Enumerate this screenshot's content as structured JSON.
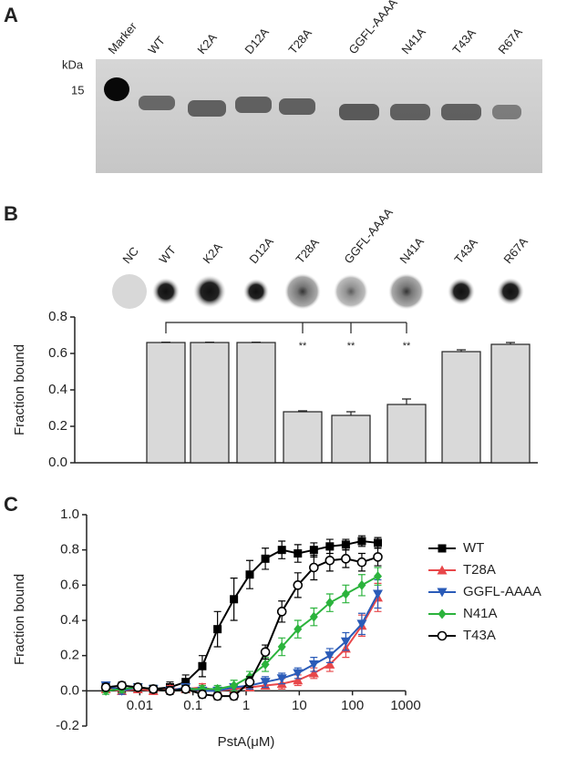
{
  "panel_labels": [
    "A",
    "B",
    "C"
  ],
  "gel": {
    "lanes": [
      "Marker",
      "WT",
      "K2A",
      "D12A",
      "T28A",
      "GGFL-AAAA",
      "N41A",
      "T43A",
      "R67A"
    ],
    "unit": "kDa",
    "marker_size": "15"
  },
  "chart_data": [
    {
      "type": "bar",
      "y_label": "Fraction bound",
      "categories": [
        "NC",
        "WT",
        "K2A",
        "D12A",
        "T28A",
        "GGFL-AAAA",
        "N41A",
        "T43A",
        "R67A"
      ],
      "values": [
        null,
        0.66,
        0.66,
        0.66,
        0.28,
        0.26,
        0.32,
        0.61,
        0.65
      ],
      "errors": [
        null,
        0.002,
        0.002,
        0.002,
        0.005,
        0.02,
        0.03,
        0.01,
        0.01
      ],
      "significance_labels": [
        null,
        null,
        null,
        null,
        "**",
        "**",
        "**",
        null,
        null
      ],
      "color": "#d9d9d9",
      "ylim": [
        0,
        0.8
      ],
      "yticks": [
        {
          "value": 0,
          "label": "0.0"
        },
        0.2,
        0.4,
        0.6,
        0.8
      ]
    },
    {
      "type": "line",
      "x_label": "PstA(μM)",
      "y_label": "Fraction bound",
      "xscale": "log",
      "x": [
        0.0023,
        0.0046,
        0.0092,
        0.018,
        0.037,
        0.073,
        0.15,
        0.29,
        0.59,
        1.17,
        2.3,
        4.7,
        9.4,
        18.8,
        37.5,
        75,
        150,
        300
      ],
      "series": [
        {
          "name": "WT",
          "color": "#000000",
          "marker": "square",
          "values": [
            0.02,
            0.01,
            0.01,
            0.01,
            0.02,
            0.05,
            0.14,
            0.35,
            0.52,
            0.66,
            0.75,
            0.8,
            0.78,
            0.8,
            0.82,
            0.83,
            0.85,
            0.84
          ],
          "errors": [
            0.02,
            0.02,
            0.02,
            0.02,
            0.03,
            0.04,
            0.06,
            0.1,
            0.12,
            0.08,
            0.06,
            0.05,
            0.05,
            0.04,
            0.04,
            0.03,
            0.03,
            0.03
          ]
        },
        {
          "name": "T28A",
          "color": "#e8474a",
          "marker": "triangle-up",
          "values": [
            0.01,
            0,
            0.01,
            0,
            0.01,
            0.01,
            0.02,
            0,
            0.01,
            0.02,
            0.03,
            0.04,
            0.06,
            0.1,
            0.15,
            0.24,
            0.37,
            0.53
          ],
          "errors": [
            0.02,
            0.02,
            0.02,
            0.02,
            0.02,
            0.02,
            0.02,
            0.02,
            0.02,
            0.02,
            0.02,
            0.03,
            0.03,
            0.03,
            0.04,
            0.05,
            0.06,
            0.08
          ]
        },
        {
          "name": "GGFL-AAAA",
          "color": "#2a5bb8",
          "marker": "triangle-down",
          "values": [
            0.03,
            0,
            0.02,
            0.01,
            0,
            0.02,
            0,
            0,
            0.02,
            0.03,
            0.05,
            0.07,
            0.1,
            0.15,
            0.2,
            0.28,
            0.38,
            0.55
          ],
          "errors": [
            0.02,
            0.02,
            0.02,
            0.02,
            0.02,
            0.02,
            0.02,
            0.02,
            0.02,
            0.02,
            0.03,
            0.03,
            0.03,
            0.04,
            0.04,
            0.05,
            0.06,
            0.08
          ]
        },
        {
          "name": "N41A",
          "color": "#2bb33c",
          "marker": "diamond",
          "values": [
            0,
            0.01,
            0.02,
            0.01,
            0,
            0.01,
            0.01,
            0.01,
            0.03,
            0.08,
            0.15,
            0.25,
            0.35,
            0.42,
            0.5,
            0.55,
            0.6,
            0.65
          ],
          "errors": [
            0.02,
            0.02,
            0.02,
            0.02,
            0.02,
            0.02,
            0.02,
            0.02,
            0.03,
            0.03,
            0.04,
            0.05,
            0.05,
            0.05,
            0.05,
            0.05,
            0.06,
            0.05
          ]
        },
        {
          "name": "T43A",
          "color": "#000000",
          "marker": "circle-open",
          "values": [
            0.02,
            0.03,
            0.02,
            0.01,
            0,
            0.01,
            -0.02,
            -0.03,
            -0.03,
            0.05,
            0.22,
            0.45,
            0.6,
            0.7,
            0.74,
            0.75,
            0.73,
            0.76
          ],
          "errors": [
            0.02,
            0.02,
            0.02,
            0.02,
            0.02,
            0.02,
            0.02,
            0.02,
            0.02,
            0.03,
            0.04,
            0.06,
            0.07,
            0.07,
            0.06,
            0.05,
            0.05,
            0.05
          ]
        }
      ],
      "xlim": [
        0.001,
        1000
      ],
      "xticks": [
        0.01,
        0.1,
        1,
        10,
        100,
        1000
      ],
      "ylim": [
        -0.2,
        1.0
      ],
      "yticks": [
        -0.2,
        {
          "value": 0,
          "label": "0.0"
        },
        0.2,
        0.4,
        0.6,
        0.8,
        {
          "value": 1,
          "label": "1.0"
        }
      ]
    }
  ]
}
